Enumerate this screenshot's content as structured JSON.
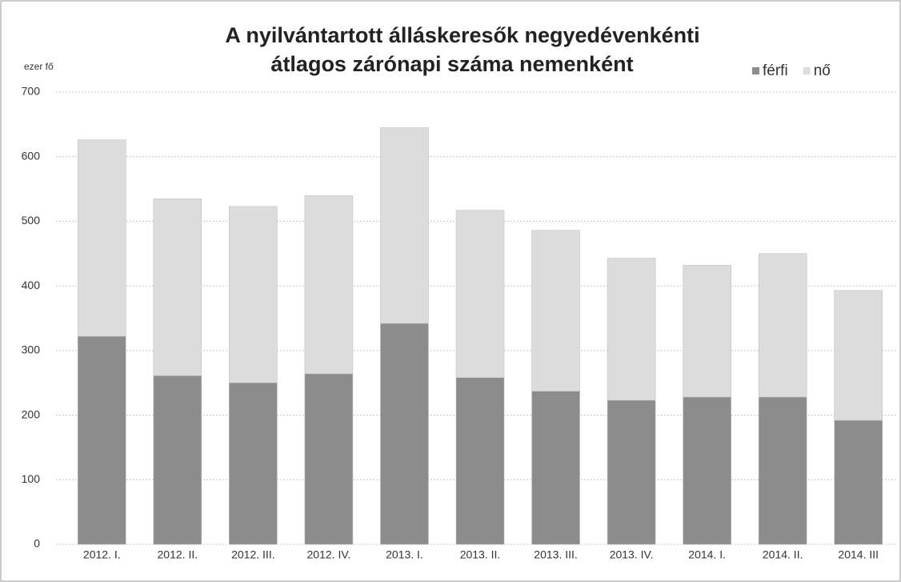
{
  "chart_data": {
    "type": "stacked_bar",
    "title": [
      "A nyilvántartott álláskeresők negyedévenkénti",
      "átlagos zárónapi száma nemenként"
    ],
    "y_label": "ezer fő",
    "categories": [
      "2012. I.",
      "2012. II.",
      "2012. III.",
      "2012. IV.",
      "2013. I.",
      "2013. II.",
      "2013. III.",
      "2013. IV.",
      "2014. I.",
      "2014. II.",
      "2014. III"
    ],
    "series": [
      {
        "name": "férfi",
        "color": "#8c8c8c",
        "values": [
          322,
          261,
          250,
          264,
          342,
          258,
          237,
          223,
          228,
          228,
          192
        ]
      },
      {
        "name": "nő",
        "color": "#dcdcdc",
        "values": [
          304,
          274,
          273,
          276,
          303,
          259,
          249,
          220,
          204,
          222,
          201
        ]
      }
    ],
    "ylim": [
      0,
      700
    ],
    "yticks": [
      0,
      100,
      200,
      300,
      400,
      500,
      600,
      700
    ],
    "grid": true,
    "legend": "top-right"
  }
}
